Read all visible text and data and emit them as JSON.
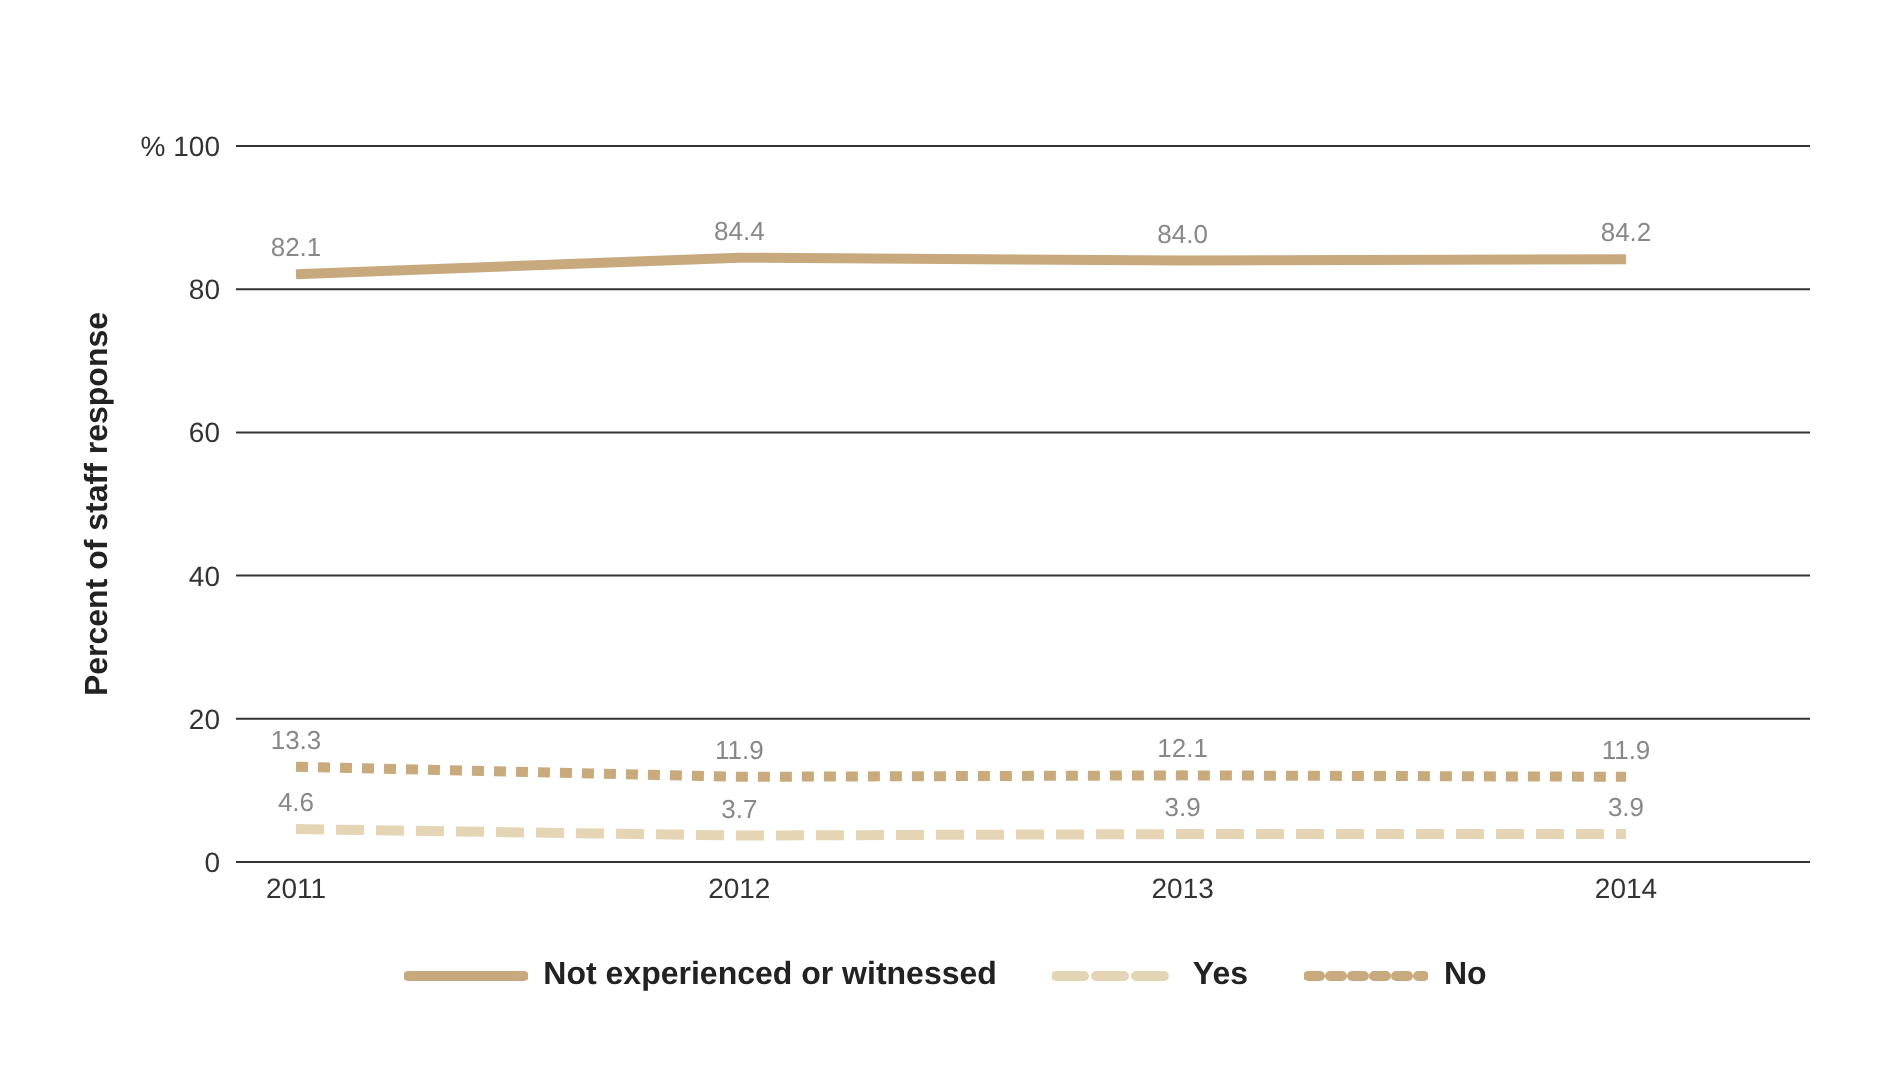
{
  "chart_data": {
    "type": "line",
    "ylabel": "Percent of staff response",
    "categories": [
      "2011",
      "2012",
      "2013",
      "2014"
    ],
    "series": [
      {
        "name": "Not experienced or witnessed",
        "color": "#c8a97e",
        "values": [
          82.1,
          84.4,
          84.0,
          84.2
        ],
        "value_labels": [
          "82.1",
          "84.4",
          "84.0",
          "84.2"
        ],
        "line_style": "solid"
      },
      {
        "name": "Yes",
        "color": "#e5d5b5",
        "values": [
          4.6,
          3.7,
          3.9,
          3.9
        ],
        "value_labels": [
          "4.6",
          "3.7",
          "3.9",
          "3.9"
        ],
        "line_style": "dashed"
      },
      {
        "name": "No",
        "color": "#c9aa7c",
        "values": [
          13.3,
          11.9,
          12.1,
          11.9
        ],
        "value_labels": [
          "13.3",
          "11.9",
          "12.1",
          "11.9"
        ],
        "line_style": "dotted"
      }
    ],
    "ylim": [
      0,
      100
    ],
    "yticks": [
      0,
      20,
      40,
      60,
      80,
      {
        "value": 100,
        "label": "% 100"
      }
    ],
    "grid": "y",
    "legend": "bottom",
    "marker": "none"
  }
}
